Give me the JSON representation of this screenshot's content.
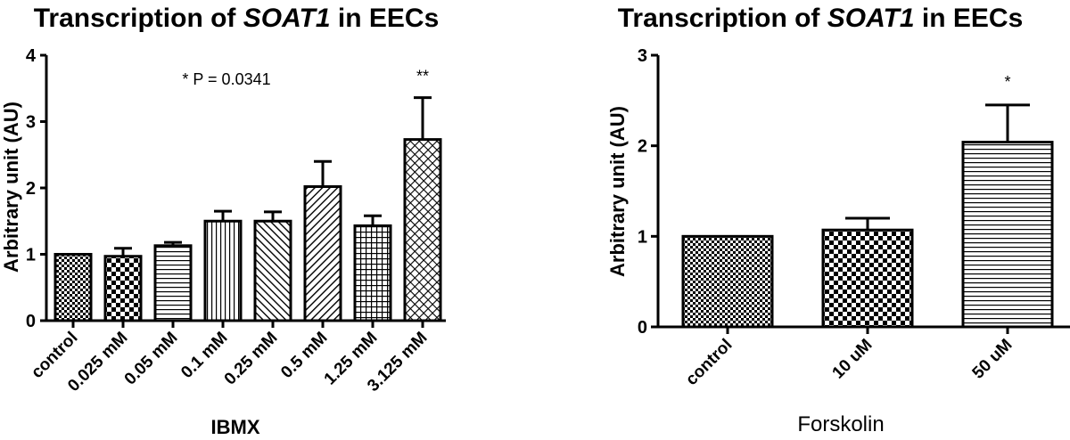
{
  "chart_data": [
    {
      "type": "bar",
      "title_pre": "Transcription of ",
      "title_gene": "SOAT1",
      "title_post": " in EECs",
      "ylabel": "Arbitrary unit (AU)",
      "xlabel": "IBMX",
      "ylim": [
        0,
        4
      ],
      "yticks": [
        "0",
        "1",
        "2",
        "3",
        "4"
      ],
      "categories": [
        "control",
        "0.025 mM",
        "0.05 mM",
        "0.1 mM",
        "0.25 mM",
        "0.5 mM",
        "1.25 mM",
        "3.125 mM"
      ],
      "values": [
        1.0,
        0.97,
        1.13,
        1.5,
        1.5,
        2.02,
        1.43,
        2.73
      ],
      "errors": [
        0.0,
        0.12,
        0.05,
        0.15,
        0.14,
        0.38,
        0.15,
        0.63
      ],
      "patterns": [
        "fine-check",
        "check",
        "hlines",
        "vlines",
        "diag",
        "diag2",
        "grid",
        "crosshatch"
      ],
      "significance": [
        "",
        "",
        "",
        "",
        "",
        "",
        "",
        "**"
      ],
      "annotation": "* P = 0.0341"
    },
    {
      "type": "bar",
      "title_pre": "Transcription of ",
      "title_gene": "SOAT1",
      "title_post": " in EECs",
      "ylabel": "Arbitrary unit (AU)",
      "xlabel": "Forskolin",
      "ylim": [
        0,
        3
      ],
      "yticks": [
        "0",
        "1",
        "2",
        "3"
      ],
      "categories": [
        "control",
        "10 uM",
        "50 uM"
      ],
      "values": [
        1.0,
        1.07,
        2.04
      ],
      "errors": [
        0.0,
        0.13,
        0.41
      ],
      "patterns": [
        "fine-check",
        "check",
        "hlines"
      ],
      "significance": [
        "",
        "",
        "*"
      ],
      "annotation": ""
    }
  ]
}
